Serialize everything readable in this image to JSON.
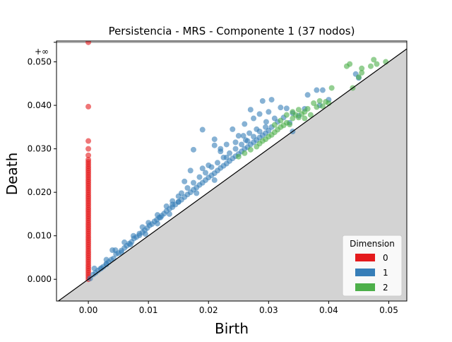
{
  "chart_data": {
    "type": "scatter",
    "title": "Persistencia - MRS - Componente 1 (37 nodos)",
    "xlabel": "Birth",
    "ylabel": "Death",
    "xlim": [
      -0.0053,
      0.053
    ],
    "ylim": [
      -0.005,
      0.0548
    ],
    "infinity_label": "+∞",
    "infinity_value": 0.0545,
    "x_ticks": [
      {
        "value": 0.0,
        "label": "0.00"
      },
      {
        "value": 0.01,
        "label": "0.01"
      },
      {
        "value": 0.02,
        "label": "0.02"
      },
      {
        "value": 0.03,
        "label": "0.03"
      },
      {
        "value": 0.04,
        "label": "0.04"
      },
      {
        "value": 0.05,
        "label": "0.05"
      }
    ],
    "y_ticks": [
      {
        "value": 0.0,
        "label": "0.000"
      },
      {
        "value": 0.01,
        "label": "0.010"
      },
      {
        "value": 0.02,
        "label": "0.020"
      },
      {
        "value": 0.03,
        "label": "0.030"
      },
      {
        "value": 0.04,
        "label": "0.040"
      },
      {
        "value": 0.05,
        "label": "0.050"
      }
    ],
    "diagonal": true,
    "legend": {
      "title": "Dimension",
      "position": "lower-right"
    },
    "series": [
      {
        "name": "0",
        "color": "#e41a1c",
        "points": [
          [
            0,
            0
          ],
          [
            0,
            0.0005
          ],
          [
            0,
            0.001
          ],
          [
            0,
            0.0015
          ],
          [
            0,
            0.002
          ],
          [
            0,
            0.0025
          ],
          [
            0,
            0.003
          ],
          [
            0,
            0.0035
          ],
          [
            0,
            0.004
          ],
          [
            0,
            0.0045
          ],
          [
            0,
            0.005
          ],
          [
            0,
            0.0055
          ],
          [
            0,
            0.006
          ],
          [
            0,
            0.0065
          ],
          [
            0,
            0.007
          ],
          [
            0,
            0.0075
          ],
          [
            0,
            0.008
          ],
          [
            0,
            0.0085
          ],
          [
            0,
            0.009
          ],
          [
            0,
            0.0095
          ],
          [
            0,
            0.01
          ],
          [
            0,
            0.0105
          ],
          [
            0,
            0.011
          ],
          [
            0,
            0.0115
          ],
          [
            0,
            0.012
          ],
          [
            0,
            0.0125
          ],
          [
            0,
            0.013
          ],
          [
            0,
            0.0135
          ],
          [
            0,
            0.014
          ],
          [
            0,
            0.0145
          ],
          [
            0,
            0.015
          ],
          [
            0,
            0.0155
          ],
          [
            0,
            0.016
          ],
          [
            0,
            0.0165
          ],
          [
            0,
            0.017
          ],
          [
            0,
            0.0175
          ],
          [
            0,
            0.018
          ],
          [
            0,
            0.0185
          ],
          [
            0,
            0.019
          ],
          [
            0,
            0.0195
          ],
          [
            0,
            0.02
          ],
          [
            0,
            0.0205
          ],
          [
            0,
            0.021
          ],
          [
            0,
            0.0215
          ],
          [
            0,
            0.022
          ],
          [
            0,
            0.0225
          ],
          [
            0,
            0.023
          ],
          [
            0,
            0.0235
          ],
          [
            0,
            0.024
          ],
          [
            0,
            0.0245
          ],
          [
            0,
            0.025
          ],
          [
            0,
            0.0255
          ],
          [
            0,
            0.026
          ],
          [
            0,
            0.0265
          ],
          [
            0,
            0.027
          ],
          [
            0,
            0.0275
          ],
          [
            0,
            0.0285
          ],
          [
            0,
            0.03
          ],
          [
            0,
            0.0318
          ],
          [
            0,
            0.0397
          ],
          [
            0,
            0.0545
          ]
        ]
      },
      {
        "name": "1",
        "color": "#377eb8",
        "points": [
          [
            0.0003,
            0.0002
          ],
          [
            0.0008,
            0.0011
          ],
          [
            0.0012,
            0.0015
          ],
          [
            0.0016,
            0.002
          ],
          [
            0.002,
            0.0024
          ],
          [
            0.0025,
            0.0029
          ],
          [
            0.003,
            0.0036
          ],
          [
            0.0034,
            0.004
          ],
          [
            0.0038,
            0.0045
          ],
          [
            0.0042,
            0.0048
          ],
          [
            0.0046,
            0.0058
          ],
          [
            0.005,
            0.006
          ],
          [
            0.0055,
            0.0066
          ],
          [
            0.006,
            0.0072
          ],
          [
            0.0064,
            0.0077
          ],
          [
            0.0068,
            0.0082
          ],
          [
            0.0072,
            0.0086
          ],
          [
            0.0076,
            0.0094
          ],
          [
            0.008,
            0.0097
          ],
          [
            0.0085,
            0.0101
          ],
          [
            0.009,
            0.0108
          ],
          [
            0.0094,
            0.0113
          ],
          [
            0.0098,
            0.0118
          ],
          [
            0.0102,
            0.0124
          ],
          [
            0.0106,
            0.0127
          ],
          [
            0.011,
            0.0133
          ],
          [
            0.0114,
            0.0137
          ],
          [
            0.0118,
            0.0142
          ],
          [
            0.0122,
            0.0146
          ],
          [
            0.0126,
            0.0151
          ],
          [
            0.013,
            0.0157
          ],
          [
            0.0135,
            0.0162
          ],
          [
            0.014,
            0.0166
          ],
          [
            0.0145,
            0.0172
          ],
          [
            0.015,
            0.0178
          ],
          [
            0.0155,
            0.0183
          ],
          [
            0.016,
            0.0189
          ],
          [
            0.0165,
            0.0195
          ],
          [
            0.017,
            0.02
          ],
          [
            0.0175,
            0.0206
          ],
          [
            0.018,
            0.0211
          ],
          [
            0.0185,
            0.0217
          ],
          [
            0.019,
            0.0222
          ],
          [
            0.0195,
            0.0228
          ],
          [
            0.02,
            0.0234
          ],
          [
            0.0205,
            0.0239
          ],
          [
            0.021,
            0.0244
          ],
          [
            0.0215,
            0.025
          ],
          [
            0.022,
            0.0256
          ],
          [
            0.0225,
            0.0261
          ],
          [
            0.023,
            0.0266
          ],
          [
            0.0235,
            0.0272
          ],
          [
            0.024,
            0.0278
          ],
          [
            0.0245,
            0.0283
          ],
          [
            0.025,
            0.0288
          ],
          [
            0.0255,
            0.0294
          ],
          [
            0.026,
            0.03
          ],
          [
            0.0265,
            0.0304
          ],
          [
            0.027,
            0.031
          ],
          [
            0.0275,
            0.0315
          ],
          [
            0.028,
            0.032
          ],
          [
            0.0285,
            0.0326
          ],
          [
            0.029,
            0.0331
          ],
          [
            0.0295,
            0.0336
          ],
          [
            0.03,
            0.0342
          ],
          [
            0.001,
            0.0025
          ],
          [
            0.003,
            0.0045
          ],
          [
            0.0045,
            0.0067
          ],
          [
            0.006,
            0.0085
          ],
          [
            0.0075,
            0.01
          ],
          [
            0.009,
            0.012
          ],
          [
            0.01,
            0.013
          ],
          [
            0.0115,
            0.0148
          ],
          [
            0.013,
            0.0168
          ],
          [
            0.014,
            0.018
          ],
          [
            0.0155,
            0.0198
          ],
          [
            0.0165,
            0.021
          ],
          [
            0.0175,
            0.0222
          ],
          [
            0.0185,
            0.0235
          ],
          [
            0.0195,
            0.0245
          ],
          [
            0.0205,
            0.0258
          ],
          [
            0.0215,
            0.0268
          ],
          [
            0.0225,
            0.028
          ],
          [
            0.0235,
            0.029
          ],
          [
            0.0245,
            0.03
          ],
          [
            0.0255,
            0.031
          ],
          [
            0.0265,
            0.0318
          ],
          [
            0.0275,
            0.0328
          ],
          [
            0.0285,
            0.034
          ],
          [
            0.0295,
            0.035
          ],
          [
            0.004,
            0.0067
          ],
          [
            0.0085,
            0.0105
          ],
          [
            0.012,
            0.0142
          ],
          [
            0.014,
            0.0172
          ],
          [
            0.015,
            0.0191
          ],
          [
            0.016,
            0.0225
          ],
          [
            0.017,
            0.025
          ],
          [
            0.0175,
            0.0298
          ],
          [
            0.019,
            0.0255
          ],
          [
            0.019,
            0.0344
          ],
          [
            0.02,
            0.0262
          ],
          [
            0.021,
            0.0308
          ],
          [
            0.021,
            0.0322
          ],
          [
            0.022,
            0.0294
          ],
          [
            0.023,
            0.031
          ],
          [
            0.024,
            0.0345
          ],
          [
            0.025,
            0.033
          ],
          [
            0.026,
            0.0357
          ],
          [
            0.027,
            0.039
          ],
          [
            0.0275,
            0.037
          ],
          [
            0.028,
            0.0345
          ],
          [
            0.0285,
            0.038
          ],
          [
            0.029,
            0.041
          ],
          [
            0.03,
            0.0385
          ],
          [
            0.0305,
            0.0413
          ],
          [
            0.031,
            0.037
          ],
          [
            0.032,
            0.0395
          ],
          [
            0.033,
            0.0393
          ],
          [
            0.0335,
            0.036
          ],
          [
            0.034,
            0.034
          ],
          [
            0.035,
            0.0376
          ],
          [
            0.036,
            0.0392
          ],
          [
            0.0365,
            0.0424
          ],
          [
            0.038,
            0.0435
          ],
          [
            0.0385,
            0.04
          ],
          [
            0.039,
            0.0435
          ],
          [
            0.04,
            0.0413
          ],
          [
            0.0445,
            0.0472
          ],
          [
            0.045,
            0.0463
          ],
          [
            0.023,
            0.028
          ],
          [
            0.022,
            0.03
          ],
          [
            0.0245,
            0.0315
          ],
          [
            0.0258,
            0.033
          ],
          [
            0.0262,
            0.032
          ],
          [
            0.0268,
            0.0336
          ],
          [
            0.0296,
            0.0362
          ],
          [
            0.0305,
            0.035
          ],
          [
            0.0315,
            0.0362
          ],
          [
            0.0325,
            0.0372
          ],
          [
            0.034,
            0.0382
          ],
          [
            0.015,
            0.0178
          ],
          [
            0.0115,
            0.0128
          ],
          [
            0.0095,
            0.0104
          ],
          [
            0.007,
            0.008
          ],
          [
            0.0055,
            0.0062
          ],
          [
            0.003,
            0.0034
          ],
          [
            0.0022,
            0.0026
          ],
          [
            0.0135,
            0.015
          ],
          [
            0.018,
            0.0198
          ],
          [
            0.021,
            0.0228
          ]
        ]
      },
      {
        "name": "2",
        "color": "#4daf4a",
        "points": [
          [
            0.027,
            0.0298
          ],
          [
            0.028,
            0.0305
          ],
          [
            0.0285,
            0.0312
          ],
          [
            0.029,
            0.0318
          ],
          [
            0.0295,
            0.0322
          ],
          [
            0.03,
            0.0328
          ],
          [
            0.0305,
            0.0332
          ],
          [
            0.031,
            0.0338
          ],
          [
            0.0315,
            0.0344
          ],
          [
            0.032,
            0.035
          ],
          [
            0.0325,
            0.0354
          ],
          [
            0.033,
            0.036
          ],
          [
            0.0335,
            0.0356
          ],
          [
            0.034,
            0.037
          ],
          [
            0.0345,
            0.0378
          ],
          [
            0.035,
            0.0372
          ],
          [
            0.0355,
            0.038
          ],
          [
            0.036,
            0.0385
          ],
          [
            0.0365,
            0.0392
          ],
          [
            0.037,
            0.0378
          ],
          [
            0.038,
            0.0396
          ],
          [
            0.039,
            0.0398
          ],
          [
            0.04,
            0.0405
          ],
          [
            0.0405,
            0.044
          ],
          [
            0.0395,
            0.0408
          ],
          [
            0.031,
            0.0355
          ],
          [
            0.032,
            0.0365
          ],
          [
            0.033,
            0.0378
          ],
          [
            0.026,
            0.029
          ],
          [
            0.025,
            0.0282
          ],
          [
            0.043,
            0.049
          ],
          [
            0.0435,
            0.0495
          ],
          [
            0.044,
            0.044
          ],
          [
            0.045,
            0.0465
          ],
          [
            0.0455,
            0.0485
          ],
          [
            0.047,
            0.049
          ],
          [
            0.0475,
            0.0505
          ],
          [
            0.048,
            0.0495
          ],
          [
            0.0495,
            0.05
          ],
          [
            0.0455,
            0.0475
          ],
          [
            0.034,
            0.0385
          ],
          [
            0.035,
            0.039
          ],
          [
            0.036,
            0.037
          ],
          [
            0.0375,
            0.0405
          ],
          [
            0.0385,
            0.041
          ]
        ]
      }
    ]
  }
}
